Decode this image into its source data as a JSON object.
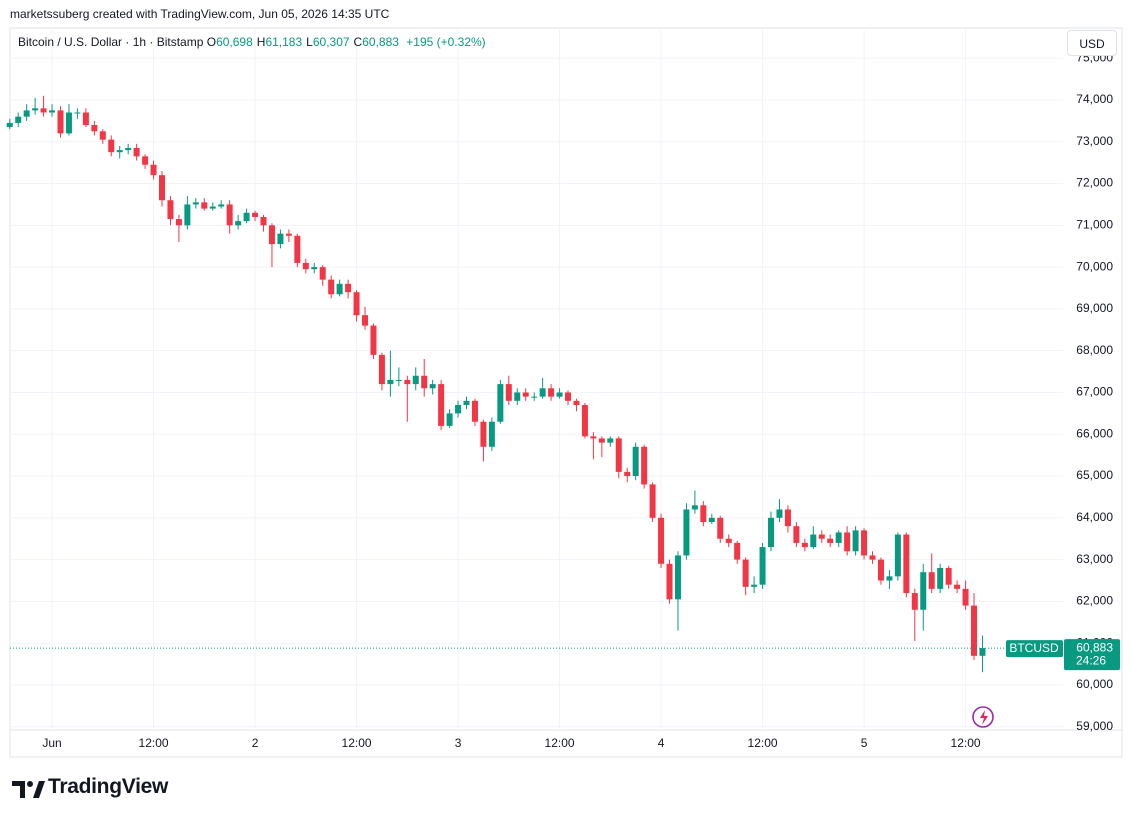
{
  "header": {
    "credit": "marketssuberg created with TradingView.com, Jun 05, 2026 14:35 UTC"
  },
  "chart_data": {
    "type": "candlestick",
    "title": "Bitcoin / U.S. Dollar · 1h · Bitstamp",
    "legend": [
      {
        "key": "O",
        "value": "60,698"
      },
      {
        "key": "H",
        "value": "61,183"
      },
      {
        "key": "L",
        "value": "60,307"
      },
      {
        "key": "C",
        "value": "60,883"
      }
    ],
    "change": "+195 (+0.32%)",
    "currency": "USD",
    "up_color": "#089981",
    "down_color": "#f23645",
    "grid": true,
    "x": [
      -5,
      -4,
      -3,
      -2,
      -1,
      0,
      1,
      2,
      3,
      4,
      5,
      6,
      7,
      8,
      9,
      10,
      11,
      12,
      13,
      14,
      15,
      16,
      17,
      18,
      19,
      20,
      21,
      22,
      23,
      24,
      25,
      26,
      27,
      28,
      29,
      30,
      31,
      32,
      33,
      34,
      35,
      36,
      37,
      38,
      39,
      40,
      41,
      42,
      43,
      44,
      45,
      46,
      47,
      48,
      49,
      50,
      51,
      52,
      53,
      54,
      55,
      56,
      57,
      58,
      59,
      60,
      61,
      62,
      63,
      64,
      65,
      66,
      67,
      68,
      69,
      70,
      71,
      72,
      73,
      74,
      75,
      76,
      77,
      78,
      79,
      80,
      81,
      82,
      83,
      84,
      85,
      86,
      87,
      88,
      89,
      90,
      91,
      92,
      93,
      94,
      95,
      96,
      97,
      98,
      99,
      100,
      101,
      102,
      103,
      104,
      105,
      106,
      107,
      108,
      109,
      110
    ],
    "open": [
      73350,
      73450,
      73600,
      73750,
      73800,
      73700,
      73750,
      73200,
      73700,
      73700,
      73400,
      73250,
      73050,
      72750,
      72800,
      72850,
      72650,
      72450,
      72200,
      71600,
      71150,
      71000,
      71500,
      71550,
      71400,
      71450,
      71500,
      71000,
      71100,
      71300,
      71200,
      71000,
      70550,
      70800,
      70750,
      70100,
      69950,
      70000,
      69700,
      69350,
      69600,
      69400,
      68850,
      68600,
      67900,
      67200,
      67300,
      67300,
      67200,
      67400,
      67100,
      67200,
      66200,
      66500,
      66700,
      66800,
      66300,
      65700,
      66300,
      67200,
      66800,
      67000,
      66900,
      66900,
      67100,
      66900,
      67000,
      66800,
      66700,
      65950,
      65900,
      65800,
      65900,
      65100,
      65000,
      65700,
      64800,
      64000,
      62900,
      62050,
      63100,
      64200,
      64300,
      63900,
      64000,
      63500,
      63400,
      63000,
      62350,
      62400,
      63300,
      64000,
      64200,
      63800,
      63400,
      63300,
      63600,
      63500,
      63400,
      63650,
      63200,
      63700,
      63100,
      63000,
      62500,
      62600,
      63600,
      62200,
      61800,
      62700,
      62300,
      62800,
      62400,
      62300,
      61900,
      60698
    ],
    "high": [
      73550,
      73700,
      73900,
      74050,
      74100,
      73900,
      73850,
      73900,
      73800,
      73800,
      73500,
      73300,
      73150,
      72900,
      72950,
      72950,
      72700,
      72550,
      72300,
      71700,
      71250,
      71700,
      71650,
      71650,
      71550,
      71600,
      71600,
      71250,
      71400,
      71350,
      71250,
      71050,
      70900,
      70900,
      70800,
      70200,
      70100,
      70050,
      69800,
      69700,
      69700,
      69450,
      69050,
      68650,
      67950,
      68000,
      67600,
      67400,
      67600,
      67800,
      67300,
      67300,
      66600,
      66800,
      66900,
      66850,
      66350,
      66400,
      67300,
      67400,
      67100,
      67100,
      67000,
      67350,
      67200,
      67100,
      67050,
      66850,
      66750,
      66050,
      65950,
      65950,
      65950,
      65200,
      65800,
      65750,
      64850,
      64100,
      63000,
      63200,
      64350,
      64650,
      64400,
      64100,
      64050,
      63600,
      63450,
      63050,
      62600,
      63400,
      64150,
      64450,
      64300,
      63900,
      63500,
      63800,
      63700,
      63600,
      63700,
      63800,
      63800,
      63750,
      63200,
      63050,
      62750,
      63650,
      63650,
      62300,
      62900,
      63150,
      62900,
      62850,
      62500,
      62500,
      62200,
      61183
    ],
    "low": [
      73300,
      73350,
      73500,
      73650,
      73600,
      73600,
      73100,
      73150,
      73550,
      73350,
      73150,
      72950,
      72650,
      72600,
      72700,
      72550,
      72350,
      72100,
      71450,
      71000,
      70600,
      70900,
      71400,
      71350,
      71350,
      71400,
      70800,
      70900,
      71050,
      71100,
      70850,
      70000,
      70450,
      70600,
      70000,
      69850,
      69850,
      69550,
      69250,
      69300,
      69250,
      68700,
      68500,
      67800,
      67050,
      66900,
      67150,
      66300,
      67050,
      66900,
      66950,
      66100,
      66150,
      66400,
      66600,
      66200,
      65350,
      65600,
      66250,
      66700,
      66700,
      66800,
      66800,
      66850,
      66800,
      66850,
      66700,
      66550,
      65900,
      65400,
      65450,
      65700,
      64950,
      64850,
      64900,
      64700,
      63900,
      62800,
      61950,
      61300,
      63000,
      64100,
      63800,
      63850,
      63400,
      63300,
      62900,
      62150,
      62200,
      62300,
      63200,
      63900,
      63650,
      63300,
      63200,
      63250,
      63400,
      63300,
      63300,
      63100,
      63100,
      63000,
      62900,
      62400,
      62300,
      62500,
      62100,
      61050,
      61300,
      62200,
      62200,
      62300,
      62200,
      61800,
      60600,
      60307
    ],
    "close": [
      73450,
      73600,
      73750,
      73800,
      73700,
      73750,
      73200,
      73700,
      73700,
      73400,
      73250,
      73050,
      72750,
      72800,
      72850,
      72650,
      72450,
      72200,
      71600,
      71150,
      71000,
      71500,
      71550,
      71400,
      71450,
      71500,
      71000,
      71100,
      71300,
      71200,
      71000,
      70550,
      70800,
      70750,
      70100,
      69950,
      70000,
      69700,
      69350,
      69600,
      69400,
      68850,
      68600,
      67900,
      67200,
      67300,
      67300,
      67200,
      67400,
      67100,
      67200,
      66200,
      66500,
      66700,
      66800,
      66300,
      65700,
      66300,
      67200,
      66800,
      67000,
      66900,
      66900,
      67100,
      66900,
      67000,
      66800,
      66700,
      65950,
      65900,
      65800,
      65900,
      65100,
      65000,
      65700,
      64800,
      64000,
      62900,
      62050,
      63100,
      64200,
      64300,
      63900,
      64000,
      63500,
      63400,
      63000,
      62350,
      62400,
      63300,
      64000,
      64200,
      63800,
      63400,
      63300,
      63600,
      63500,
      63400,
      63650,
      63200,
      63700,
      63100,
      63000,
      62500,
      62600,
      63600,
      62200,
      61800,
      62700,
      62300,
      62800,
      62400,
      62300,
      61900,
      60698,
      60883
    ],
    "xlim": [
      -4.97,
      119.52
    ],
    "xticks": [
      {
        "value": 0,
        "label": "Jun"
      },
      {
        "value": 12,
        "label": "12:00"
      },
      {
        "value": 24,
        "label": "2"
      },
      {
        "value": 36,
        "label": "12:00"
      },
      {
        "value": 48,
        "label": "3"
      },
      {
        "value": 60,
        "label": "12:00"
      },
      {
        "value": 72,
        "label": "4"
      },
      {
        "value": 84,
        "label": "12:00"
      },
      {
        "value": 96,
        "label": "5"
      },
      {
        "value": 108,
        "label": "12:00"
      }
    ],
    "ylim": [
      58923,
      75674
    ],
    "yticks": [
      {
        "value": 59000,
        "label": "59,000"
      },
      {
        "value": 60000,
        "label": "60,000"
      },
      {
        "value": 61000,
        "label": "61,000"
      },
      {
        "value": 62000,
        "label": "62,000"
      },
      {
        "value": 63000,
        "label": "63,000"
      },
      {
        "value": 64000,
        "label": "64,000"
      },
      {
        "value": 65000,
        "label": "65,000"
      },
      {
        "value": 66000,
        "label": "66,000"
      },
      {
        "value": 67000,
        "label": "67,000"
      },
      {
        "value": 68000,
        "label": "68,000"
      },
      {
        "value": 69000,
        "label": "69,000"
      },
      {
        "value": 70000,
        "label": "70,000"
      },
      {
        "value": 71000,
        "label": "71,000"
      },
      {
        "value": 72000,
        "label": "72,000"
      },
      {
        "value": 73000,
        "label": "73,000"
      },
      {
        "value": 74000,
        "label": "74,000"
      },
      {
        "value": 75000,
        "label": "75,000"
      }
    ],
    "last_price": {
      "symbol": "BTCUSD",
      "label": "60,883",
      "countdown": "24:26"
    }
  },
  "footer": {
    "brand": "TradingView"
  }
}
